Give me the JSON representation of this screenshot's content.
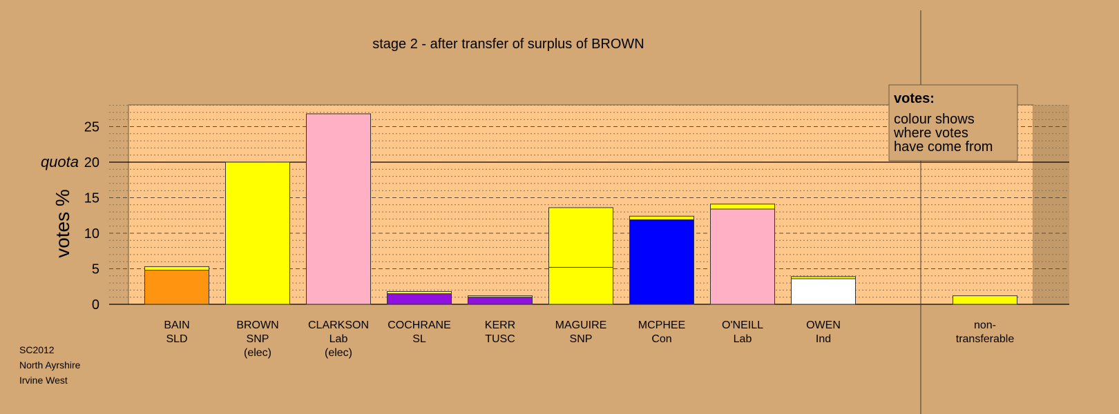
{
  "chart_data": {
    "type": "bar",
    "title": "stage 2 - after transfer of surplus of BROWN",
    "ylabel": "votes %",
    "ylim": [
      0,
      28
    ],
    "yticks": [
      0,
      5,
      10,
      15,
      20,
      25
    ],
    "quota": {
      "value": 20,
      "label": "quota"
    },
    "grid": true,
    "legend": {
      "title": "votes:",
      "lines": [
        "colour shows",
        "where votes",
        "have come from"
      ],
      "position": "top-right"
    },
    "categories": [
      {
        "name": "BAIN",
        "party": "SLD",
        "status": ""
      },
      {
        "name": "BROWN",
        "party": "SNP",
        "status": "(elec)"
      },
      {
        "name": "CLARKSON",
        "party": "Lab",
        "status": "(elec)"
      },
      {
        "name": "COCHRANE",
        "party": "SL",
        "status": ""
      },
      {
        "name": "KERR",
        "party": "TUSC",
        "status": ""
      },
      {
        "name": "MAGUIRE",
        "party": "SNP",
        "status": ""
      },
      {
        "name": "MCPHEE",
        "party": "Con",
        "status": ""
      },
      {
        "name": "O'NEILL",
        "party": "Lab",
        "status": ""
      },
      {
        "name": "OWEN",
        "party": "Ind",
        "status": ""
      },
      {
        "name": "non-",
        "party": "transferable",
        "status": ""
      }
    ],
    "segments": [
      [
        {
          "from": "SLD",
          "color": "#ff9410",
          "value": 4.8
        },
        {
          "from": "SNP",
          "color": "#ffff00",
          "value": 0.5
        }
      ],
      [
        {
          "from": "SNP",
          "color": "#ffff00",
          "value": 20.0
        }
      ],
      [
        {
          "from": "Lab",
          "color": "#ffb0c4",
          "value": 26.8
        }
      ],
      [
        {
          "from": "SL",
          "color": "#9010e0",
          "value": 1.5
        },
        {
          "from": "SNP",
          "color": "#ffff00",
          "value": 0.3
        }
      ],
      [
        {
          "from": "TUSC",
          "color": "#9010e0",
          "value": 1.0
        },
        {
          "from": "SNP",
          "color": "#ffff00",
          "value": 0.2
        }
      ],
      [
        {
          "from": "SNP",
          "color": "#ffff00",
          "value": 5.2
        },
        {
          "from": "SNP",
          "color": "#ffff00",
          "value": 8.4
        }
      ],
      [
        {
          "from": "Con",
          "color": "#0000ff",
          "value": 11.9
        },
        {
          "from": "SNP",
          "color": "#ffff00",
          "value": 0.5
        }
      ],
      [
        {
          "from": "Lab",
          "color": "#ffb0c4",
          "value": 13.4
        },
        {
          "from": "SNP",
          "color": "#ffff00",
          "value": 0.7
        }
      ],
      [
        {
          "from": "Ind",
          "color": "#ffffff",
          "value": 3.6
        },
        {
          "from": "SNP",
          "color": "#ffff00",
          "value": 0.3
        }
      ],
      [
        {
          "from": "SNP",
          "color": "#ffff00",
          "value": 1.2
        }
      ]
    ],
    "colors": {
      "background": "#d4a874",
      "plot_area": "#ffc88a",
      "nontransferable_area": "#c29a6a"
    }
  },
  "footer": {
    "line1": "SC2012",
    "line2": "North Ayrshire",
    "line3": "Irvine West"
  }
}
